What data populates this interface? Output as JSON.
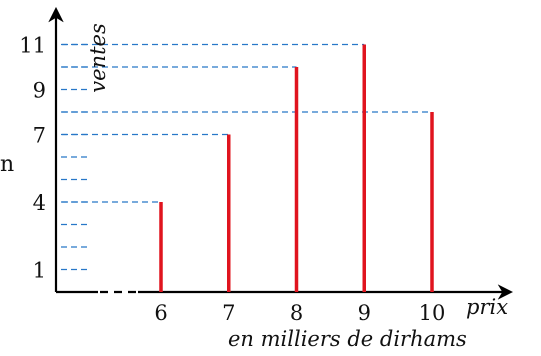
{
  "chart_data": {
    "type": "bar",
    "style": "vertical sticks",
    "categories": [
      "6",
      "7",
      "8",
      "9",
      "10"
    ],
    "values": [
      4,
      7,
      10,
      11,
      8
    ],
    "xlabel": "prix",
    "x_unit_note": "en milliers de dirhams",
    "ylabel": "ventes",
    "y_ticks_labeled": [
      1,
      4,
      7,
      9,
      11
    ],
    "y_ticks": [
      1,
      2,
      3,
      4,
      5,
      6,
      7,
      8,
      9,
      10,
      11
    ],
    "ylim": [
      0,
      11
    ],
    "grid": "dashed guide lines from each bar top to the y-axis",
    "colors": {
      "bars": "#e0141e",
      "guides": "#2878c8",
      "axes": "#000000"
    }
  },
  "edge_text": "n"
}
